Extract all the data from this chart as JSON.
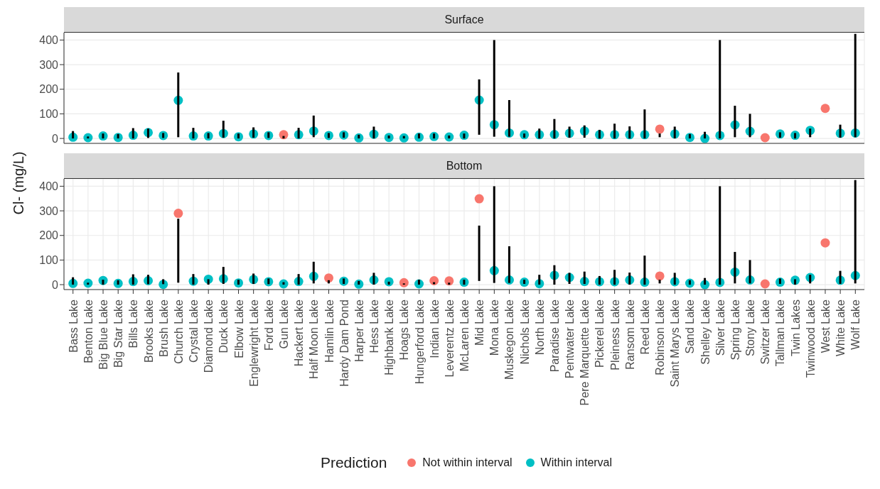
{
  "chart_data": [
    {
      "type": "scatter",
      "title": "Surface",
      "ylabel": "Cl- (mg/L)",
      "tick_labels": "y",
      "grid": true,
      "ylim": [
        -20,
        430
      ],
      "yticks": [
        0,
        100,
        200,
        300,
        400
      ],
      "categories": [
        null,
        null,
        null,
        null,
        null,
        null,
        null,
        null,
        null,
        null,
        null,
        null,
        null,
        null,
        null,
        null,
        null,
        null,
        null,
        null,
        null,
        null,
        null,
        null,
        null,
        null,
        null,
        null,
        null,
        null,
        null,
        null,
        null,
        null,
        null,
        null,
        null,
        null,
        null,
        null,
        null,
        null,
        null,
        null,
        null,
        null,
        null,
        null,
        null,
        null,
        null,
        null,
        null
      ],
      "series": [
        {
          "type": "bar",
          "color": "#000000",
          "base": [
            0,
            0,
            0,
            0,
            0,
            2,
            2,
            5,
            0,
            0,
            3,
            0,
            3,
            2,
            0,
            0,
            5,
            2,
            3,
            0,
            0,
            0,
            0,
            0,
            0,
            0,
            0,
            15,
            7,
            7,
            3,
            0,
            0,
            3,
            3,
            0,
            0,
            0,
            0,
            5,
            0,
            0,
            0,
            0,
            5,
            5,
            null,
            3,
            0,
            5,
            null,
            3,
            5
          ],
          "values": [
            30,
            8,
            20,
            18,
            42,
            38,
            20,
            263,
            43,
            22,
            69,
            20,
            42,
            23,
            10,
            43,
            88,
            20,
            22,
            15,
            48,
            12,
            10,
            20,
            20,
            12,
            20,
            225,
            393,
            149,
            17,
            40,
            79,
            45,
            50,
            35,
            60,
            49,
            118,
            15,
            48,
            18,
            27,
            400,
            128,
            95,
            null,
            22,
            22,
            35,
            null,
            53,
            420
          ]
        },
        {
          "color": "#f8766d",
          "values": [
            null,
            null,
            null,
            null,
            null,
            null,
            null,
            null,
            null,
            null,
            null,
            null,
            null,
            null,
            15,
            null,
            null,
            null,
            null,
            null,
            null,
            null,
            null,
            null,
            null,
            null,
            null,
            null,
            null,
            null,
            null,
            null,
            null,
            null,
            null,
            null,
            null,
            null,
            null,
            38,
            null,
            null,
            null,
            null,
            null,
            null,
            3,
            null,
            null,
            null,
            122,
            null,
            null
          ]
        },
        {
          "color": "#00bfc4",
          "values": [
            5,
            3,
            10,
            4,
            13,
            24,
            12,
            155,
            10,
            10,
            20,
            7,
            18,
            12,
            null,
            15,
            30,
            12,
            14,
            2,
            17,
            4,
            2,
            5,
            8,
            6,
            13,
            156,
            56,
            22,
            15,
            15,
            16,
            21,
            30,
            15,
            15,
            15,
            15,
            null,
            18,
            4,
            0,
            12,
            55,
            29,
            null,
            18,
            13,
            33,
            null,
            21,
            22
          ]
        }
      ]
    },
    {
      "type": "scatter",
      "title": "Bottom",
      "grid": true,
      "legend": "bottom",
      "legend_title": "Prediction",
      "ylim": [
        -20,
        430
      ],
      "yticks": [
        0,
        100,
        200,
        300,
        400
      ],
      "categories": [
        "Bass Lake",
        "Benton Lake",
        "Big Blue Lake",
        "Big Star Lake",
        "Bills Lake",
        "Brooks Lake",
        "Brush Lake",
        "Church Lake",
        "Crystal Lake",
        "Diamond Lake",
        "Duck Lake",
        "Elbow Lake",
        "Englewright Lake",
        "Ford Lake",
        "Gun Lake",
        "Hackert Lake",
        "Half Moon Lake",
        "Hamlin Lake",
        "Hardy Dam Pond",
        "Harper Lake",
        "Hess Lake",
        "Highbank Lake",
        "Hoags Lake",
        "Hungerford Lake",
        "Indian Lake",
        "Leverentz Lake",
        "McLaren Lake",
        "Mid Lake",
        "Mona Lake",
        "Muskegon Lake",
        "Nichols Lake",
        "North Lake",
        "Paradise Lake",
        "Pentwater Lake",
        "Pere Marquette Lake",
        "Pickerel Lake",
        "Pleiness Lake",
        "Ransom Lake",
        "Reed Lake",
        "Robinson Lake",
        "Saint Marys Lake",
        "Sand Lake",
        "Shelley Lake",
        "Silver Lake",
        "Spring Lake",
        "Stony Lake",
        "Switzer Lake",
        "Tallman Lake",
        "Twin Lakes",
        "Twinwood Lake",
        "West Lake",
        "White Lake",
        "Wolf Lake"
      ],
      "series": [
        {
          "type": "bar",
          "color": "#000000",
          "base": [
            0,
            0,
            0,
            0,
            0,
            2,
            2,
            8,
            0,
            0,
            3,
            0,
            3,
            2,
            0,
            0,
            5,
            5,
            3,
            0,
            0,
            0,
            0,
            0,
            2,
            0,
            0,
            15,
            7,
            7,
            3,
            0,
            0,
            3,
            3,
            0,
            0,
            0,
            0,
            5,
            0,
            0,
            0,
            0,
            5,
            5,
            null,
            3,
            0,
            5,
            null,
            3,
            5
          ],
          "values": [
            30,
            8,
            20,
            18,
            42,
            38,
            20,
            260,
            43,
            22,
            69,
            20,
            42,
            23,
            10,
            43,
            88,
            13,
            22,
            15,
            48,
            12,
            5,
            20,
            8,
            8,
            20,
            225,
            393,
            149,
            17,
            40,
            79,
            45,
            50,
            35,
            60,
            49,
            118,
            15,
            48,
            18,
            27,
            400,
            128,
            95,
            null,
            22,
            22,
            35,
            null,
            53,
            420
          ]
        },
        {
          "name": "Not within interval",
          "color": "#f8766d",
          "values": [
            null,
            null,
            null,
            null,
            null,
            null,
            null,
            290,
            null,
            null,
            null,
            null,
            null,
            null,
            null,
            null,
            null,
            27,
            null,
            null,
            null,
            null,
            8,
            null,
            16,
            15,
            null,
            349,
            null,
            null,
            null,
            null,
            null,
            null,
            null,
            null,
            null,
            null,
            null,
            35,
            null,
            null,
            null,
            null,
            null,
            null,
            3,
            null,
            null,
            null,
            170,
            null,
            null
          ]
        },
        {
          "name": "Within interval",
          "color": "#00bfc4",
          "values": [
            5,
            6,
            17,
            5,
            13,
            16,
            1,
            null,
            14,
            22,
            24,
            7,
            21,
            12,
            3,
            13,
            34,
            null,
            14,
            2,
            19,
            12,
            null,
            3,
            null,
            null,
            10,
            null,
            57,
            19,
            10,
            4,
            38,
            29,
            13,
            12,
            12,
            19,
            10,
            null,
            12,
            6,
            0,
            9,
            51,
            19,
            null,
            10,
            18,
            29,
            null,
            18,
            37
          ]
        }
      ]
    }
  ]
}
